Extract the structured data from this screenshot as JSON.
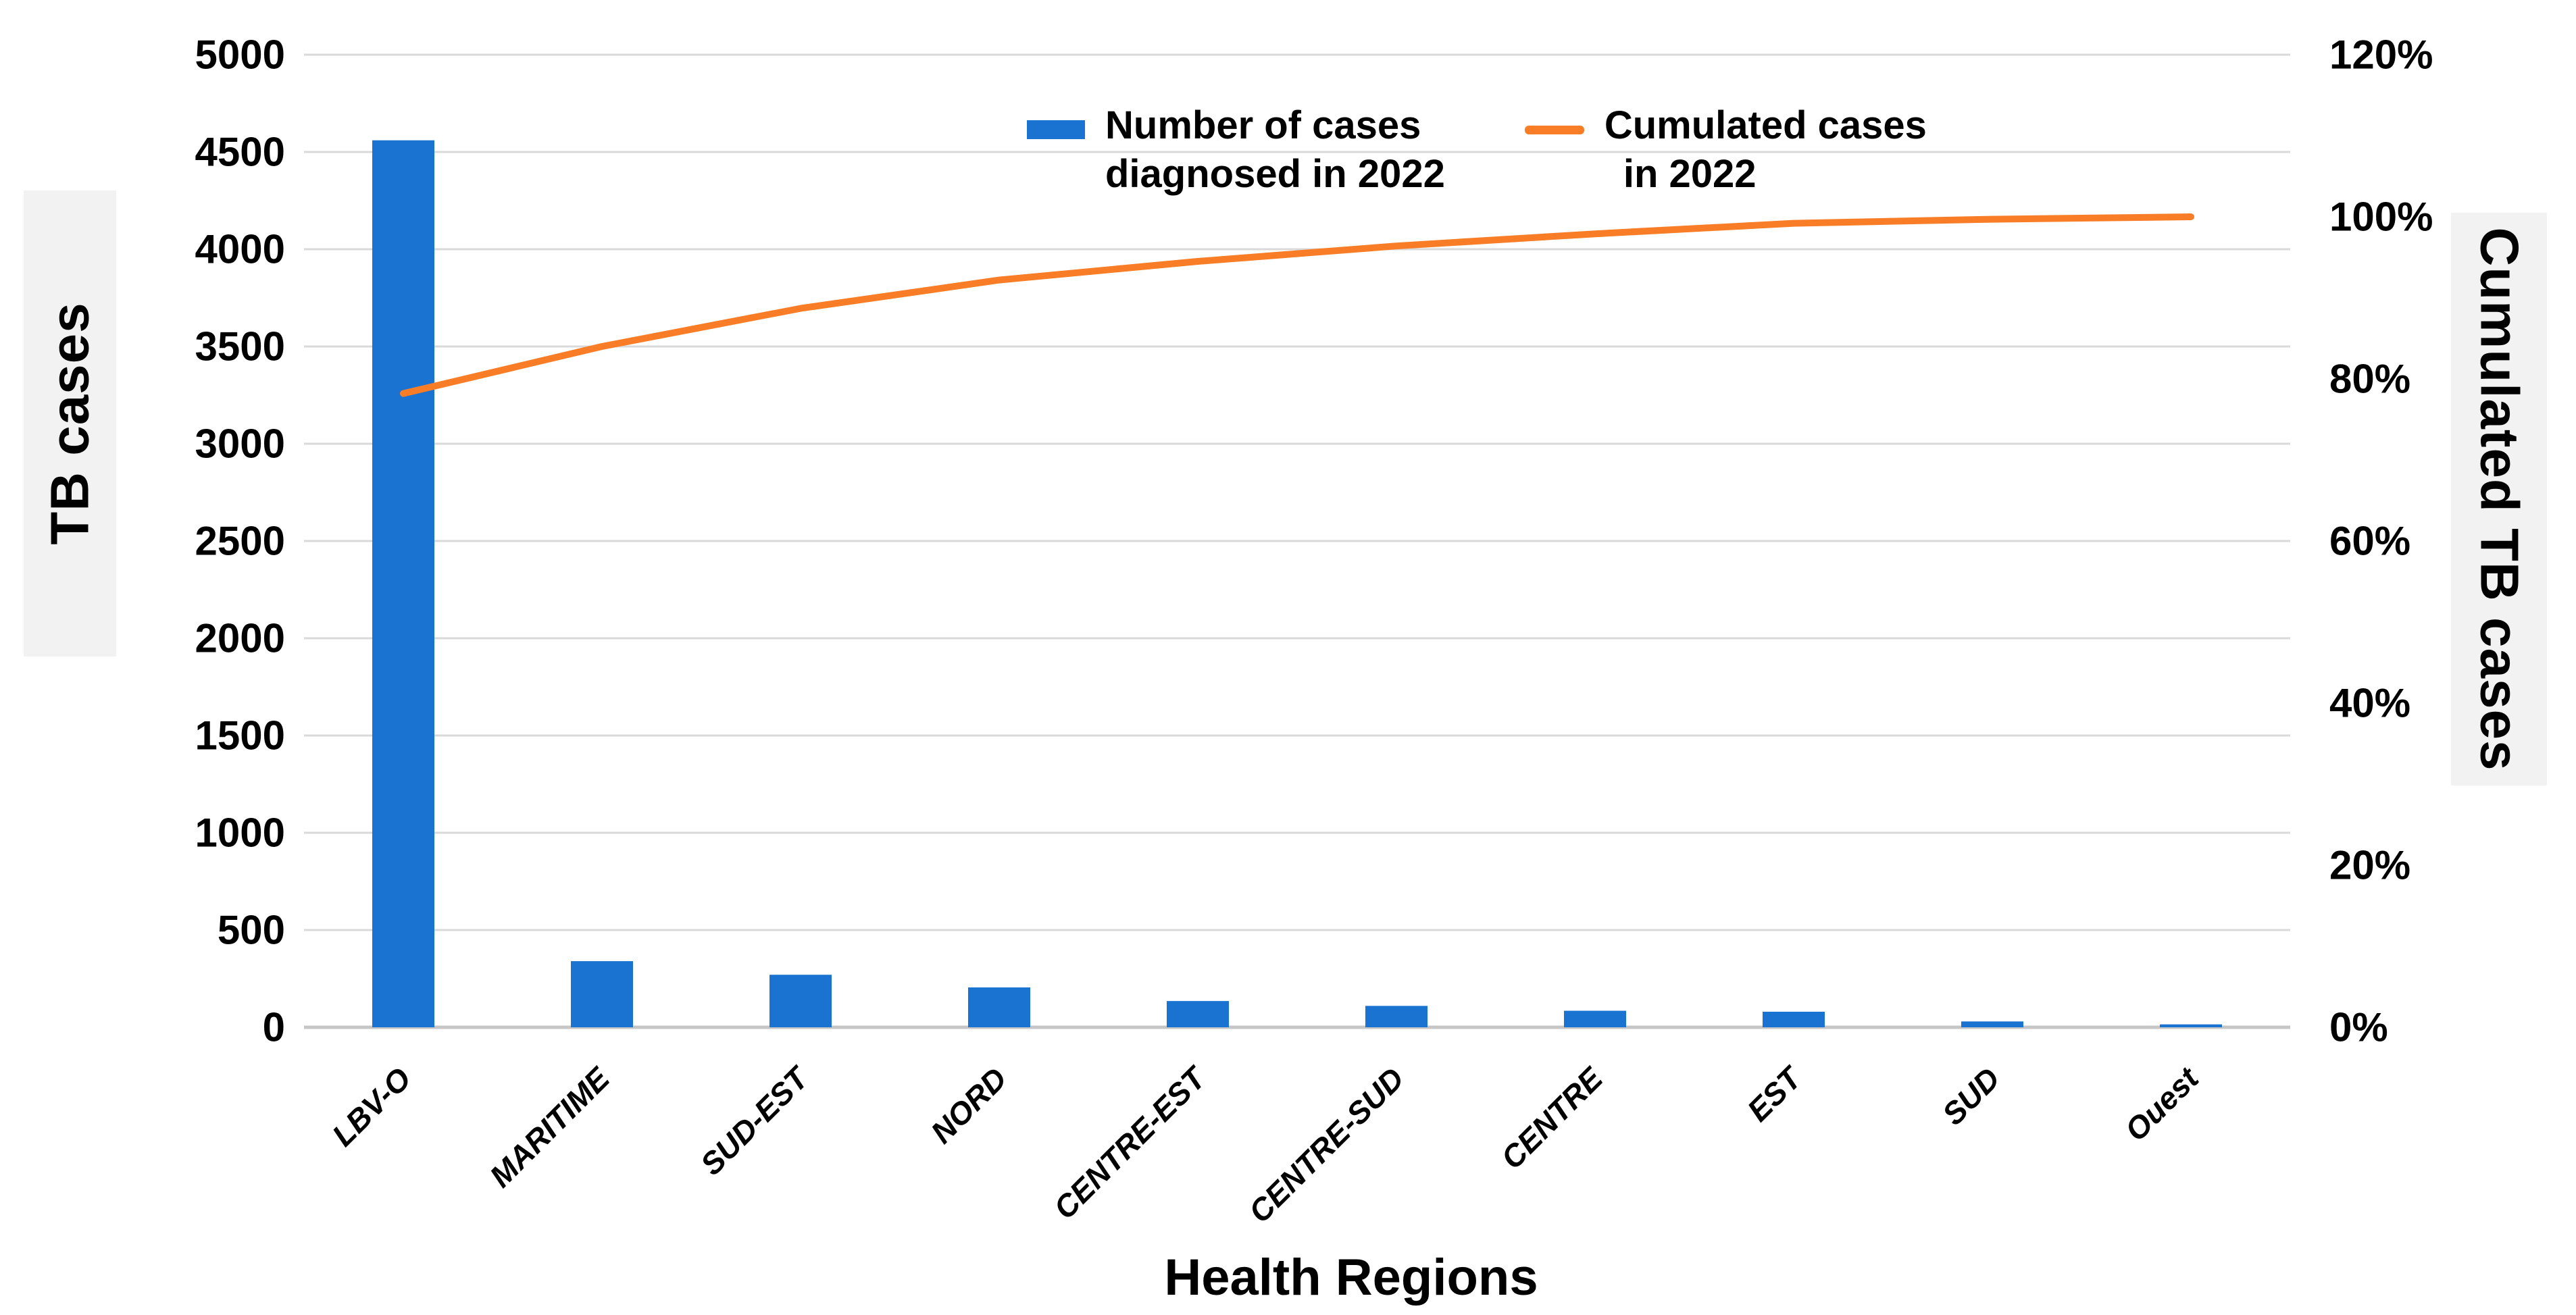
{
  "chart_data": {
    "type": "bar",
    "subtype": "pareto-combo",
    "title": "",
    "categories": [
      "LBV-O",
      "MARITIME",
      "SUD-EST",
      "NORD",
      "CENTRE-EST",
      "CENTRE-SUD",
      "CENTRE",
      "EST",
      "SUD",
      "Ouest"
    ],
    "series": [
      {
        "name": "Number of cases diagnosed in 2022",
        "type": "bar",
        "axis": "left",
        "values": [
          4560,
          340,
          270,
          205,
          135,
          110,
          85,
          80,
          30,
          15
        ]
      },
      {
        "name": "Cumulated cases in 2022",
        "type": "line",
        "axis": "right",
        "values_percent": [
          78.2,
          84.0,
          88.7,
          92.2,
          94.5,
          96.4,
          97.9,
          99.2,
          99.7,
          100.0
        ]
      }
    ],
    "left_axis": {
      "title": "TB cases",
      "min": 0,
      "max": 5000,
      "step": 500,
      "tick_labels": [
        "0",
        "500",
        "1000",
        "1500",
        "2000",
        "2500",
        "3000",
        "3500",
        "4000",
        "4500",
        "5000"
      ]
    },
    "right_axis": {
      "title": "Cumulated TB cases",
      "min": 0,
      "max": 120,
      "step": 20,
      "tick_labels": [
        "0%",
        "20%",
        "40%",
        "60%",
        "80%",
        "100%",
        "120%"
      ]
    },
    "xlabel": "Health Regions",
    "grid": true,
    "legend": {
      "position": "top-center",
      "items": [
        {
          "marker": "bar-swatch",
          "label_lines": [
            "Number of cases",
            "diagnosed in 2022"
          ]
        },
        {
          "marker": "line-swatch",
          "label_lines": [
            "Cumulated cases",
            "in 2022"
          ]
        }
      ]
    }
  },
  "colors": {
    "bar": "#1B73D1",
    "line": "#F97D27",
    "grid": "#D9D9D9",
    "axis_line": "#C6C6C6",
    "label_bg": "#F2F2F2",
    "text": "#000000",
    "background": "#FFFFFF"
  }
}
